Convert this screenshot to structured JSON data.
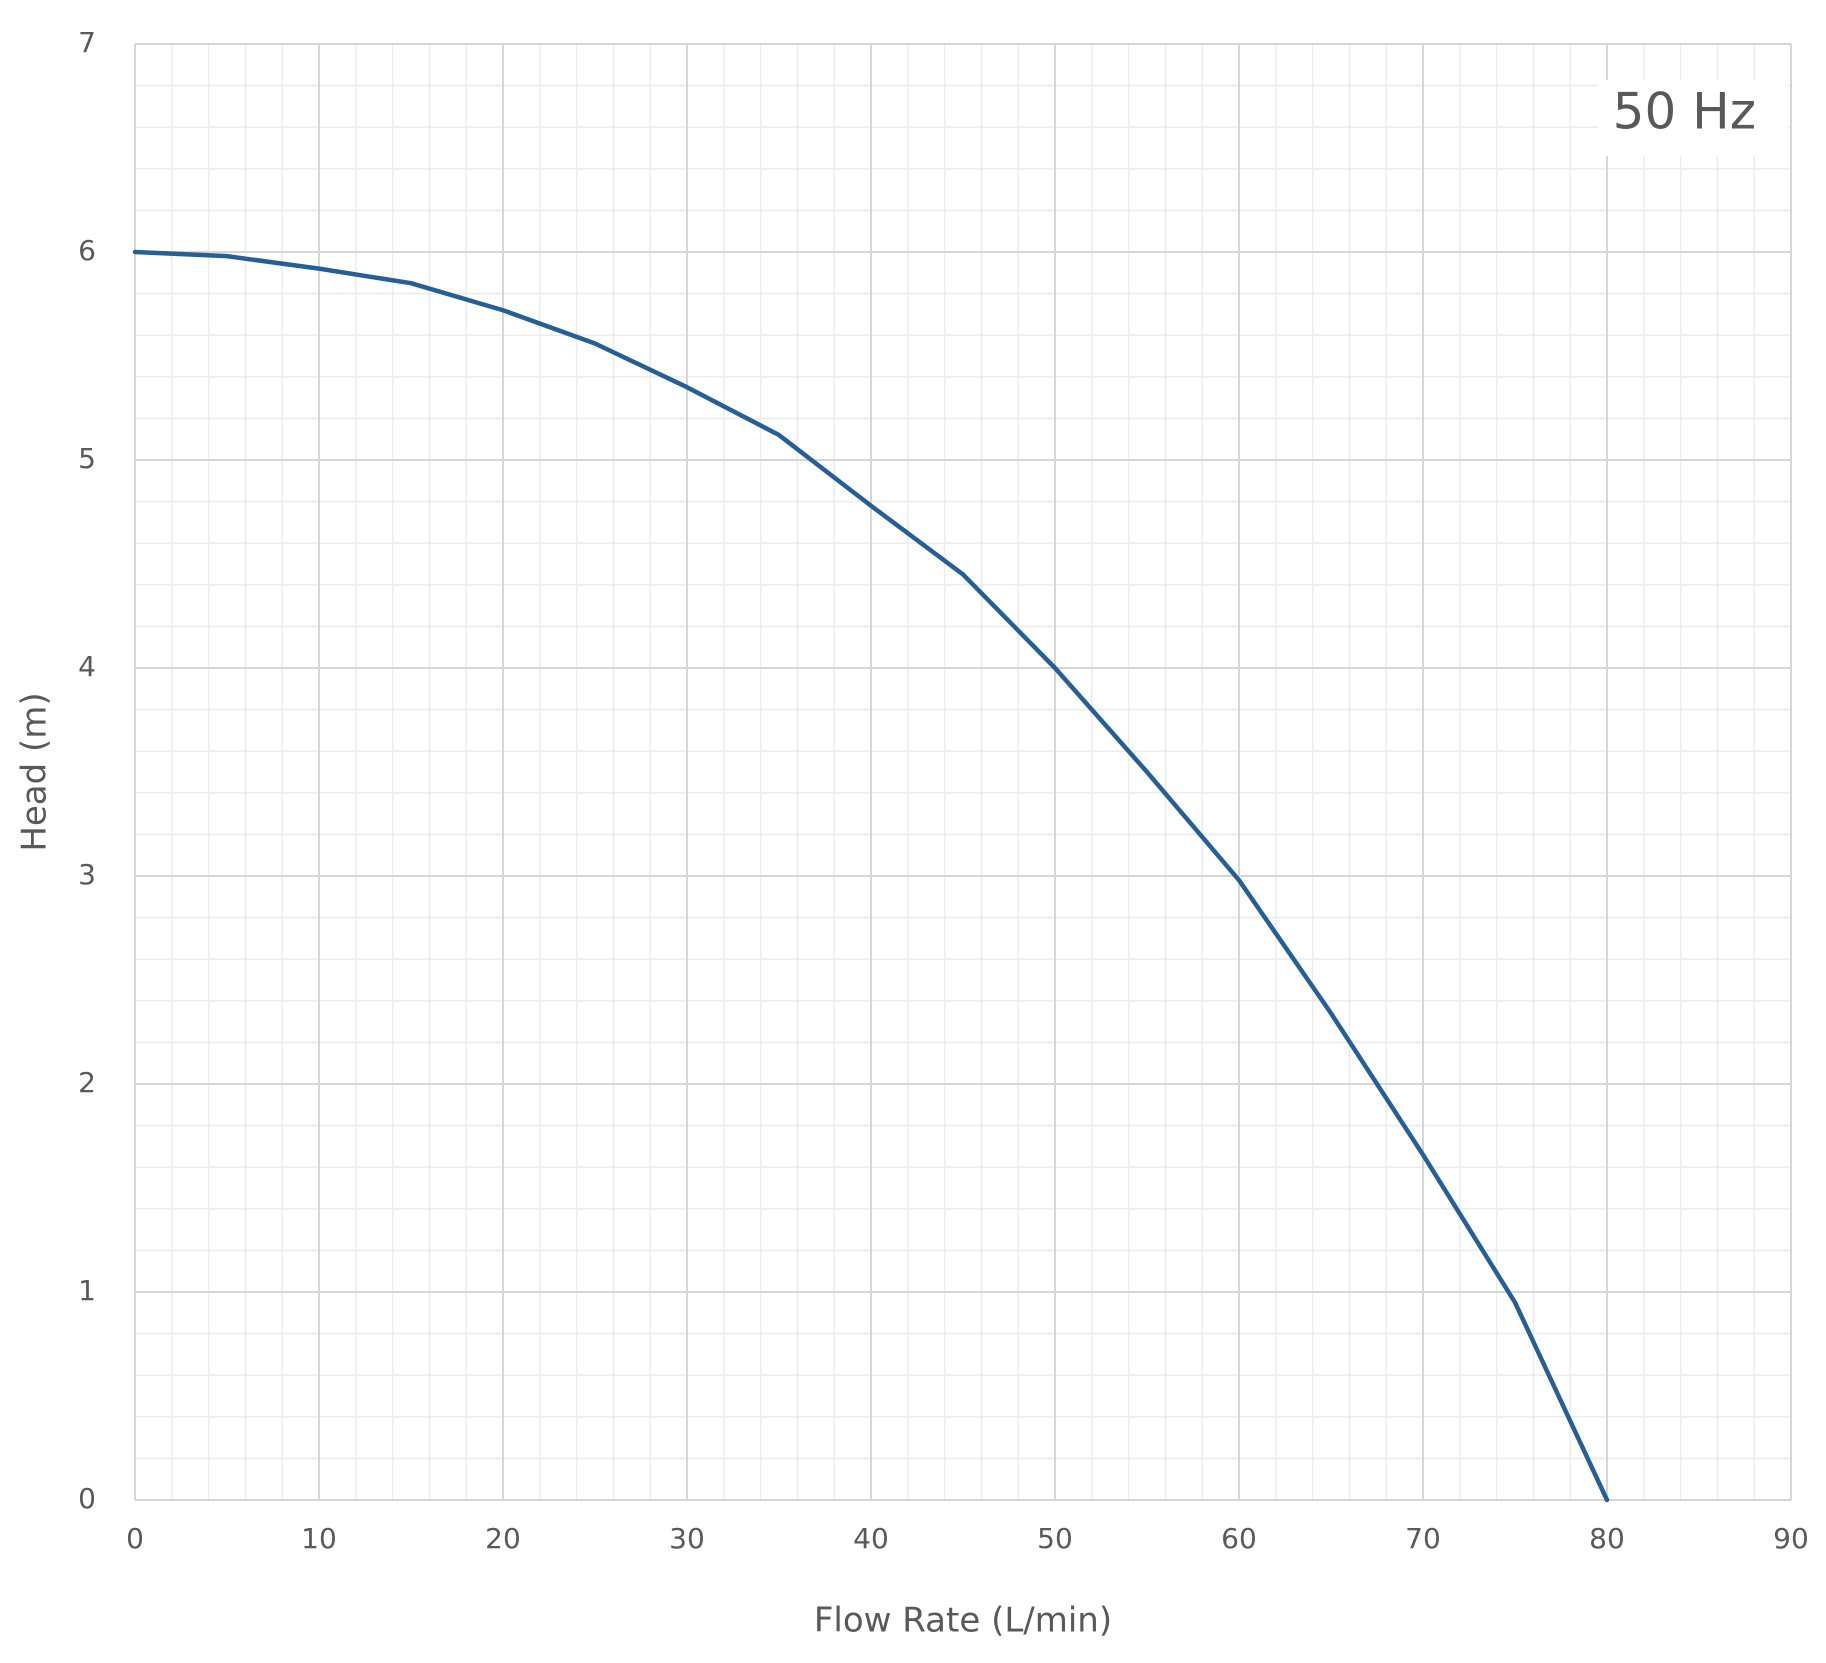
{
  "chart_data": {
    "type": "line",
    "xlabel": "Flow Rate (L/min)",
    "ylabel": "Head (m)",
    "annotation": "50 Hz",
    "x": [
      0,
      5,
      10,
      15,
      20,
      25,
      30,
      35,
      40,
      45,
      50,
      55,
      60,
      65,
      70,
      75,
      80
    ],
    "series": [
      {
        "color": "#265f96",
        "values": [
          6.0,
          5.98,
          5.92,
          5.85,
          5.72,
          5.56,
          5.35,
          5.12,
          4.78,
          4.45,
          4.0,
          3.5,
          2.98,
          2.34,
          1.66,
          0.95,
          0
        ]
      }
    ],
    "xlim": [
      0,
      90
    ],
    "ylim": [
      0,
      7
    ],
    "xticks": [
      0,
      10,
      20,
      30,
      40,
      50,
      60,
      70,
      80,
      90
    ],
    "yticks": [
      0,
      1,
      2,
      3,
      4,
      5,
      6,
      7
    ],
    "xminorticks": [
      2,
      4,
      6,
      8,
      12,
      14,
      16,
      18,
      22,
      24,
      26,
      28,
      32,
      34,
      36,
      38,
      42,
      44,
      46,
      48,
      52,
      54,
      56,
      58,
      62,
      64,
      66,
      68,
      72,
      74,
      76,
      78,
      82,
      84,
      86,
      88
    ],
    "yminorticks": [
      0.2,
      0.4,
      0.6,
      0.8,
      1.2,
      1.4,
      1.6,
      1.8,
      2.2,
      2.4,
      2.6,
      2.8,
      3.2,
      3.4,
      3.6,
      3.8,
      4.2,
      4.4,
      4.6,
      4.8,
      5.2,
      5.4,
      5.6,
      5.8,
      6.2,
      6.4,
      6.6,
      6.8
    ],
    "grid": true
  }
}
